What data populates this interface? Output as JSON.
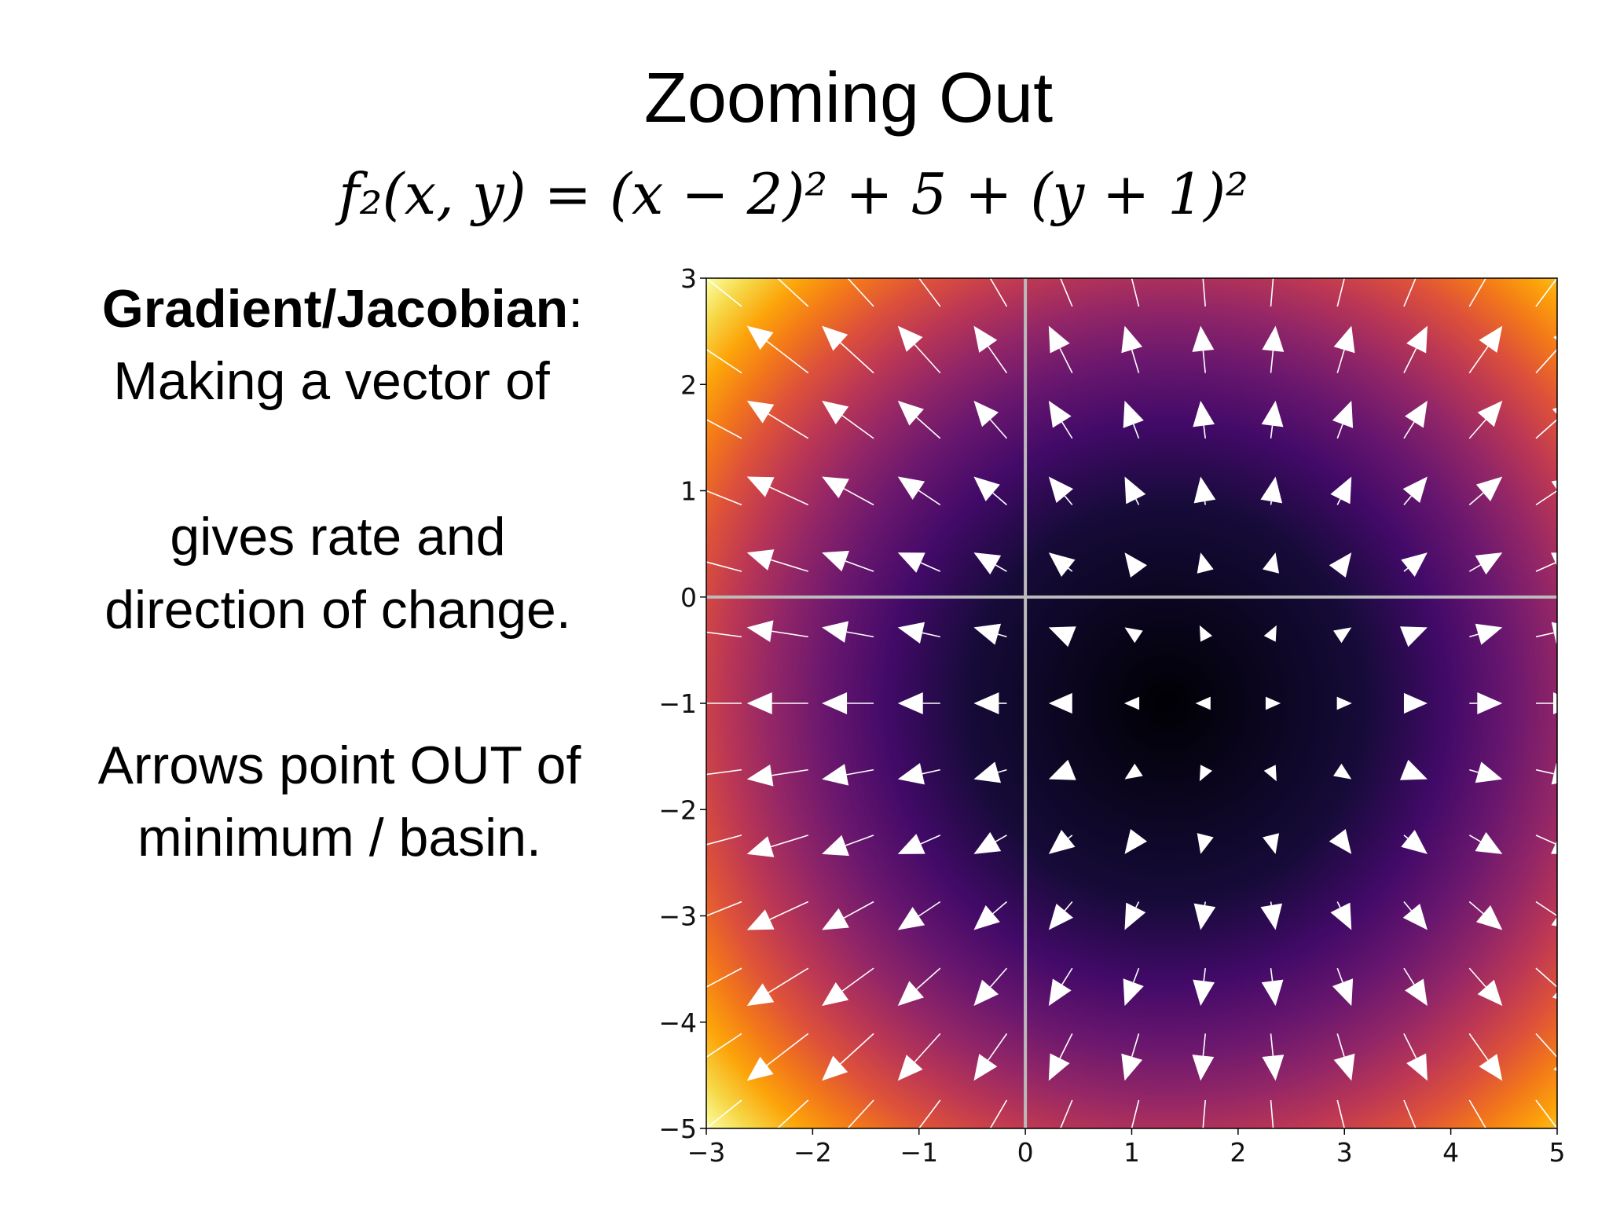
{
  "slide": {
    "title": "Zooming Out",
    "formula": "f₂(x, y) = (x − 2)² + 5 + (y + 1)²",
    "left_text": {
      "heading": "Gradient/Jacobian",
      "heading_suffix": ":",
      "lines": [
        "Making a vector of",
        "gives rate and",
        "direction of change.",
        "Arrows point OUT of",
        "minimum / basin."
      ]
    }
  },
  "chart_data": {
    "type": "quiver",
    "x": [
      -3,
      -2.33,
      -1.67,
      -1,
      -0.33,
      0.33,
      1,
      1.67,
      2.33,
      3,
      3.67,
      4.33,
      5
    ],
    "y": [
      -5,
      -4.33,
      -3.67,
      -3,
      -2.33,
      -1.67,
      -1,
      -0.33,
      0.33,
      1,
      1.67,
      2.33,
      3
    ],
    "u": [
      -10,
      -8.67,
      -7.33,
      -6,
      -4.67,
      -3.33,
      -2,
      -0.67,
      0.67,
      2,
      3.33,
      4.67,
      6
    ],
    "v": [
      -8,
      -6.67,
      -5.33,
      -4,
      -2.67,
      -1.33,
      0,
      1.33,
      2.67,
      4,
      5.33,
      6.67,
      8
    ],
    "color": "#ffffff",
    "hline": 0,
    "vline": 0,
    "xlim": [
      -3,
      5
    ],
    "ylim": [
      -5,
      3
    ],
    "xticks": [
      {
        "value": -3,
        "label": "−3"
      },
      {
        "value": -2,
        "label": "−2"
      },
      {
        "value": -1,
        "label": "−1"
      },
      0,
      1,
      2,
      3,
      4,
      5
    ],
    "yticks": [
      {
        "value": -5,
        "label": "−5"
      },
      {
        "value": -4,
        "label": "−4"
      },
      {
        "value": -3,
        "label": "−3"
      },
      {
        "value": -2,
        "label": "−2"
      },
      {
        "value": -1,
        "label": "−1"
      },
      0,
      1,
      2,
      3
    ]
  }
}
